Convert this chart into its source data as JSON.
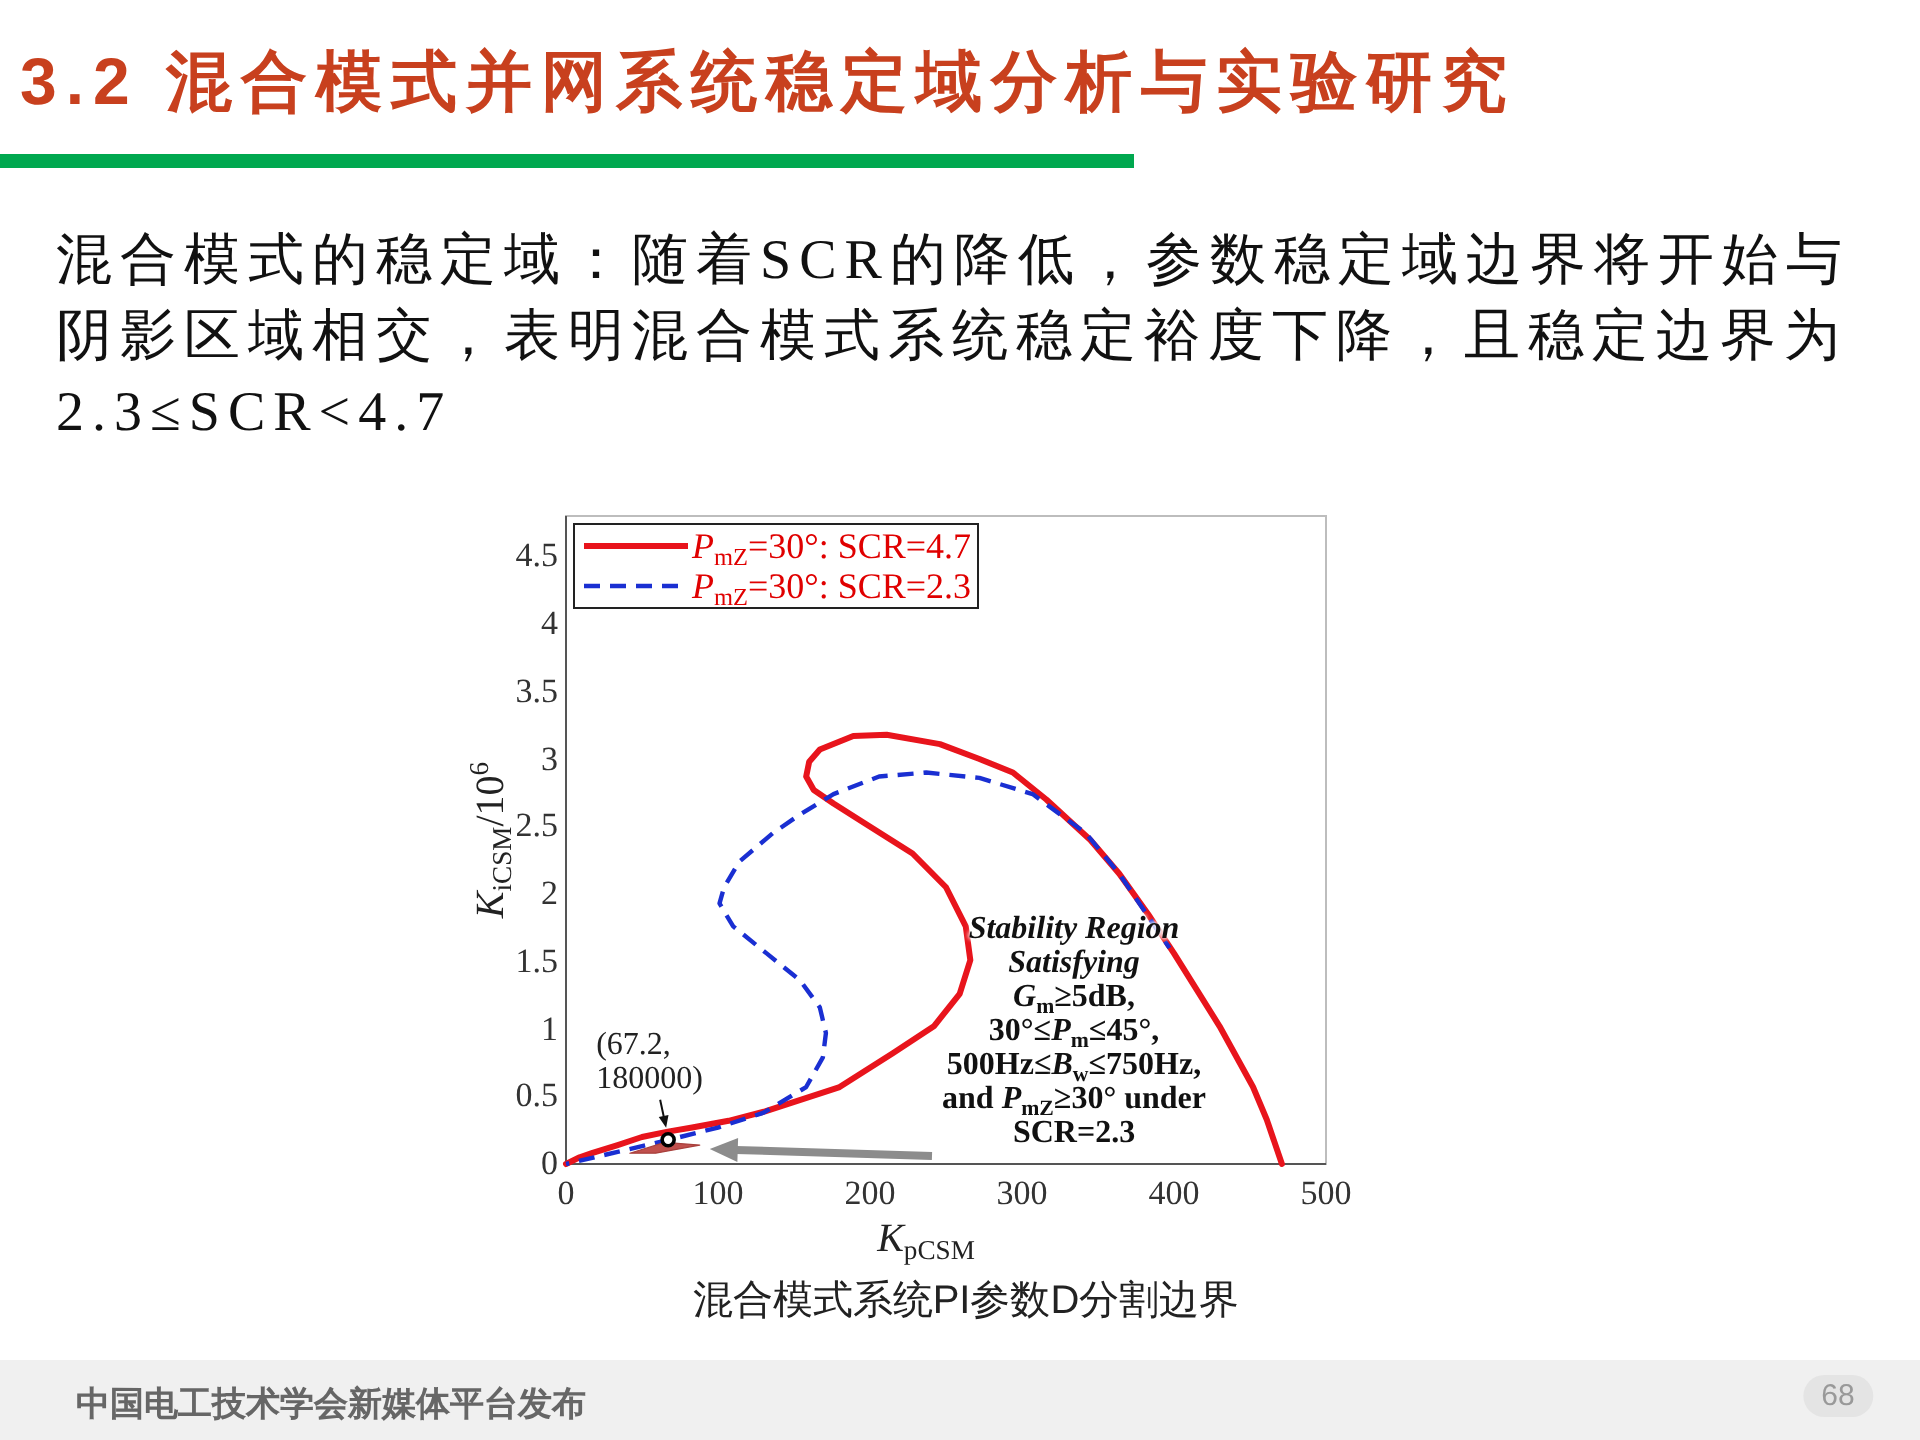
{
  "chart_data": {
    "type": "line",
    "title": "3.2 混合模式并网系统稳定域分析与实验研究",
    "subtitle": "混合模式的稳定域：随着SCR的降低，参数稳定域边界将开始与阴影区域相交，表明混合模式系统稳定裕度下降，且稳定边界为2.3≤SCR<4.7",
    "xlabel": "*K*$_{pCSM}$",
    "ylabel": "*K*$_{iCSM}$/10$^{6}$",
    "xlim": [
      0,
      500
    ],
    "ylim": [
      0,
      4.8
    ],
    "xticks": [
      0,
      100,
      200,
      300,
      400,
      500
    ],
    "yticks": [
      0,
      0.5,
      1,
      1.5,
      2,
      2.5,
      3,
      3.5,
      4,
      4.5
    ],
    "legend": "top left",
    "series": [
      {
        "name": "*P*$_{mZ}$=30°: SCR=4.7",
        "color": "#e8141c",
        "line_style": "solid",
        "x": [
          0,
          9,
          17,
          34,
          50,
          67,
          83,
          107,
          131,
          180,
          215,
          242,
          259,
          266,
          263,
          250,
          228,
          197,
          176,
          163,
          158,
          160,
          167,
          189,
          211,
          246,
          272,
          294,
          316,
          345,
          364,
          383,
          400,
          430,
          452,
          461,
          471
        ],
        "values": [
          0,
          0.05,
          0.08,
          0.14,
          0.2,
          0.24,
          0.27,
          0.32,
          0.39,
          0.57,
          0.82,
          1.02,
          1.26,
          1.51,
          1.76,
          2.05,
          2.3,
          2.52,
          2.67,
          2.77,
          2.87,
          2.98,
          3.07,
          3.17,
          3.18,
          3.11,
          3.0,
          2.9,
          2.7,
          2.4,
          2.15,
          1.85,
          1.56,
          1.02,
          0.57,
          0.33,
          0
        ]
      },
      {
        "name": "*P*$_{mZ}$=30°: SCR=2.3",
        "color": "#1a2fd2",
        "line_style": "dashed",
        "x": [
          0,
          34,
          68,
          100,
          130,
          158,
          169,
          171,
          167,
          154,
          132,
          110,
          101,
          104,
          114,
          136,
          154,
          176,
          206,
          237,
          272,
          307,
          342,
          364,
          382,
          397
        ],
        "values": [
          0,
          0.09,
          0.18,
          0.27,
          0.38,
          0.57,
          0.79,
          0.97,
          1.16,
          1.36,
          1.56,
          1.76,
          1.93,
          2.05,
          2.24,
          2.45,
          2.59,
          2.74,
          2.87,
          2.9,
          2.86,
          2.74,
          2.45,
          2.15,
          1.85,
          1.6
        ]
      },
      {
        "type": "area",
        "color": "#c0504d",
        "x": [
          42,
          65,
          88,
          59,
          42
        ],
        "values": [
          0.08,
          0.16,
          0.14,
          0.08,
          0.08
        ]
      },
      {
        "type": "scatter",
        "color": "#000000",
        "marker": "circle",
        "x": [
          67.2
        ],
        "values": [
          0.18
        ]
      }
    ],
    "annotations": [
      "*Stability Region Satisfying* *G*$_{m}$≥5dB, 30°≤*P*$_{m}$≤45°, 500Hz≤*B*$_{w}$≤750Hz, and *P*$_{mZ}$≥30° under SCR=2.3",
      {
        "text": "(67.2, 180000)",
        "x": 67.2,
        "y": 0.18
      },
      "混合模式系统PI参数D分割边界",
      "中国电工技术学会新媒体平台发布",
      "68"
    ]
  }
}
